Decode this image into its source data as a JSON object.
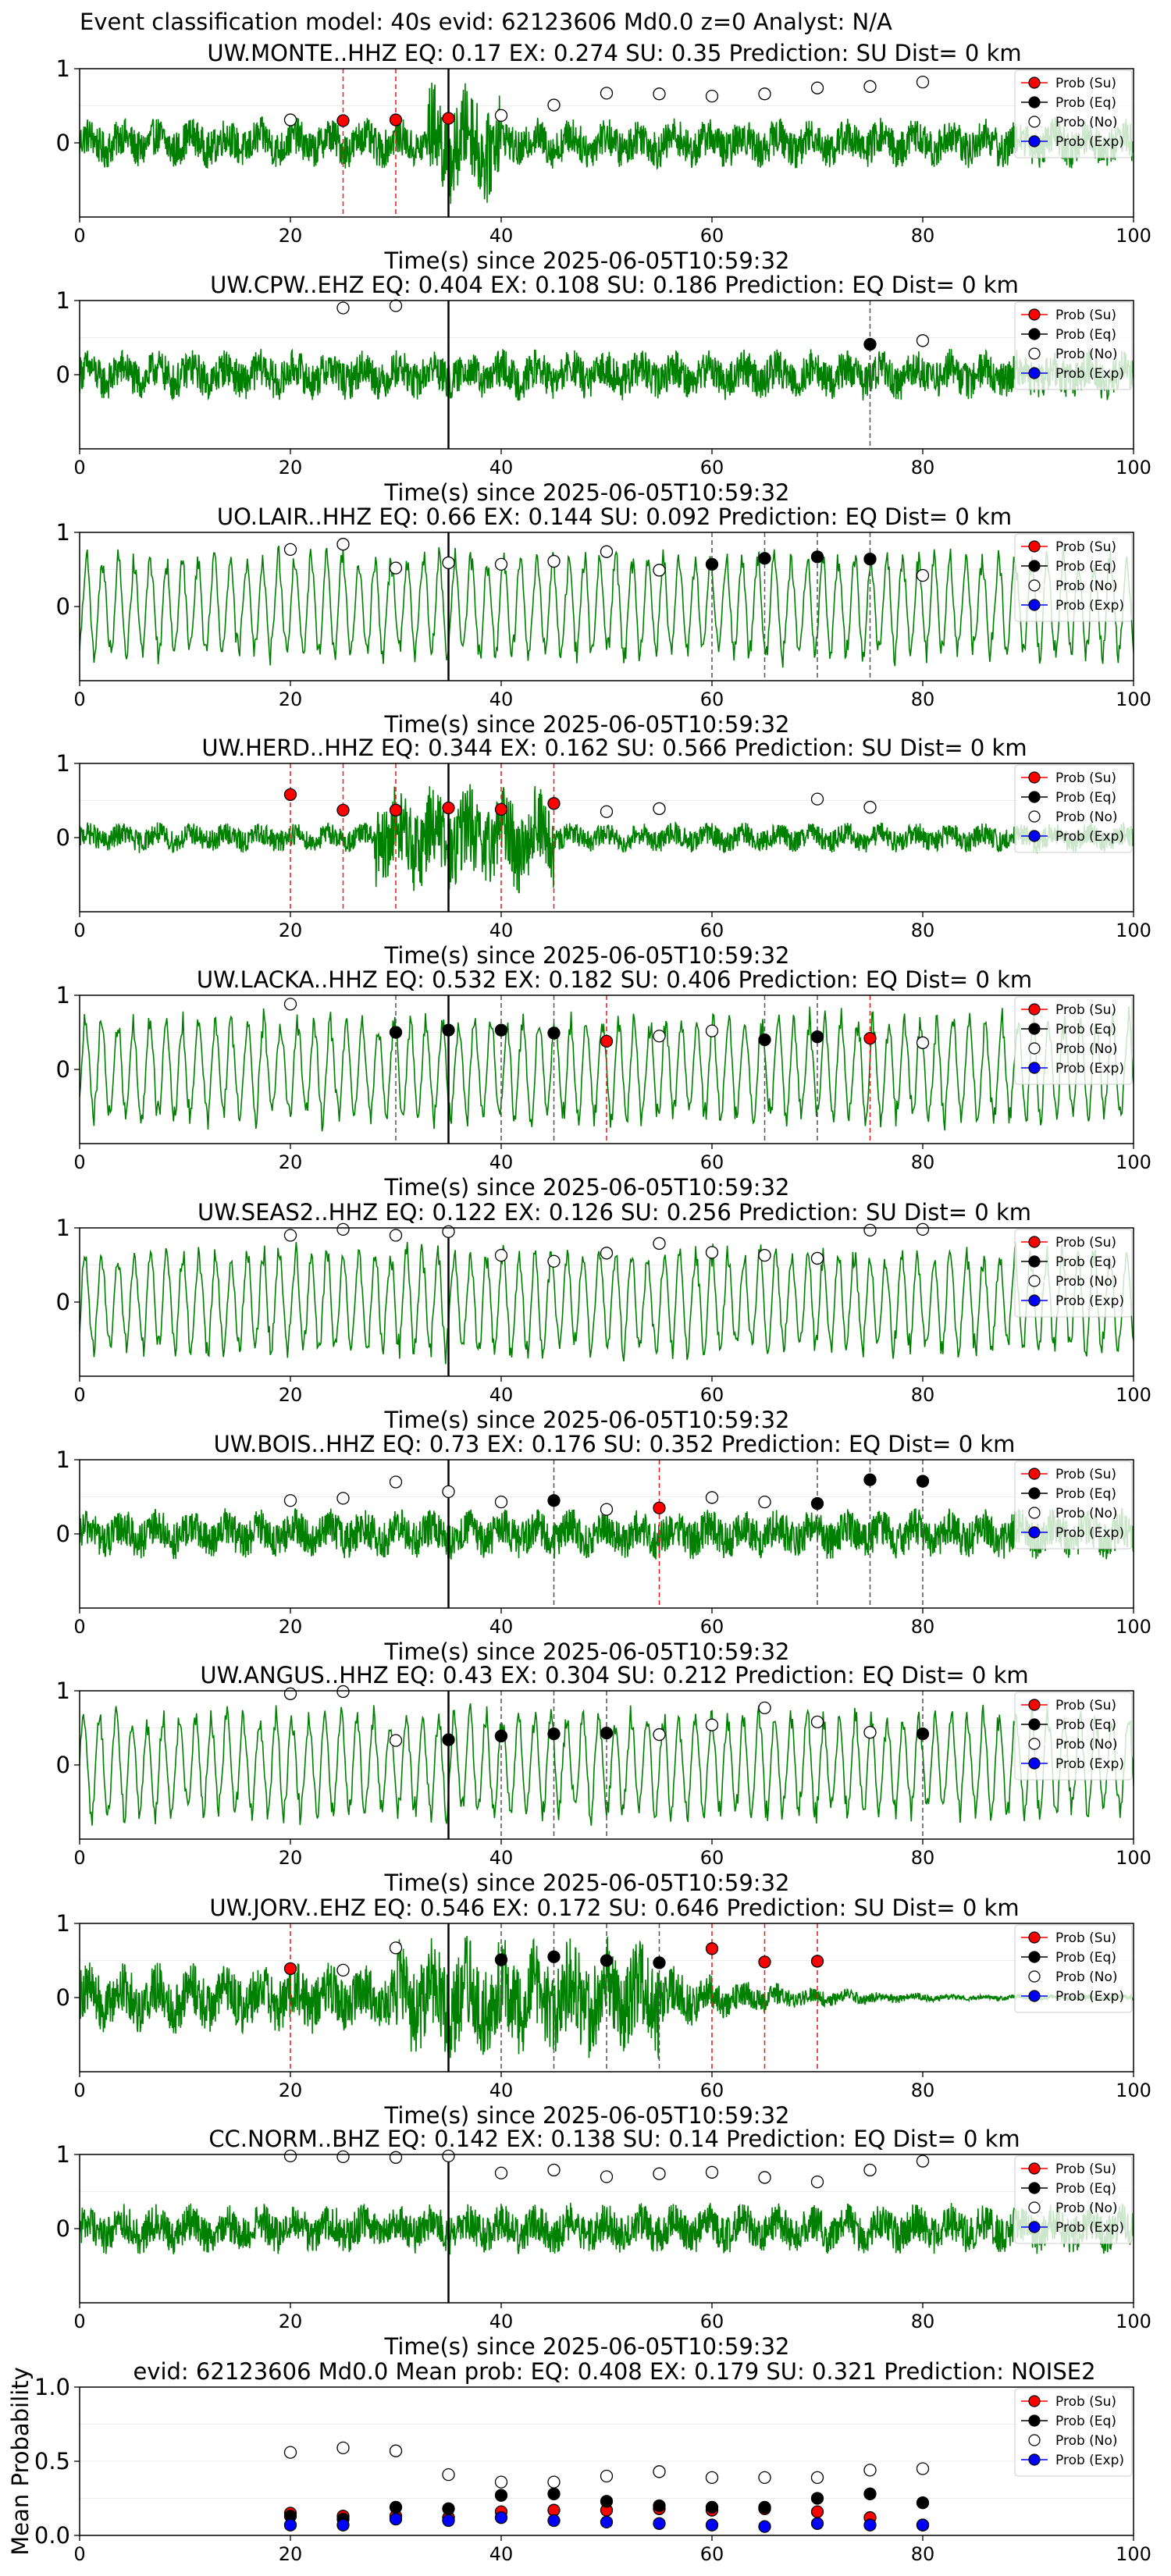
{
  "suptitle": "Event classification model: 40s evid: 62123606 Md0.0 z=0 Analyst: N/A",
  "legend": [
    "Prob (Su)",
    "Prob (Eq)",
    "Prob (No)",
    "Prob (Exp)"
  ],
  "colors": {
    "su": "#ff0000",
    "eq": "#000000",
    "no": "#ffffff",
    "exp": "#0000ff",
    "trace": "#008000",
    "su_line": "#e41a1c",
    "eq_line": "#555555"
  },
  "chart_data": [
    {
      "type": "line",
      "title": "UW.MONTE..HHZ   EQ: 0.17  EX: 0.274  SU: 0.35   Prediction: SU    Dist= 0 km",
      "xlabel": "Time(s) since 2025-06-05T10:59:32",
      "xlim": [
        0,
        100
      ],
      "ylim": [
        -1,
        1
      ],
      "xticks": [
        "0",
        "20",
        "40",
        "60",
        "80",
        "100"
      ],
      "yticks": [
        "1",
        "0"
      ],
      "trace_style": "dense",
      "onset": 35,
      "su": {
        "x": [
          25,
          30,
          35
        ],
        "y": [
          0.3,
          0.31,
          0.33
        ]
      },
      "eq": {
        "x": [],
        "y": []
      },
      "no": {
        "x": [
          20,
          40,
          45,
          50,
          55,
          60,
          65,
          70,
          75,
          80
        ],
        "y": [
          0.31,
          0.37,
          0.51,
          0.67,
          0.66,
          0.63,
          0.66,
          0.74,
          0.76,
          0.82
        ]
      },
      "su_lines": [
        25,
        30
      ],
      "eq_lines": []
    },
    {
      "type": "line",
      "title": "UW.CPW..EHZ   EQ: 0.404  EX: 0.108  SU: 0.186   Prediction: EQ    Dist= 0 km",
      "xlabel": "Time(s) since 2025-06-05T10:59:32",
      "xlim": [
        0,
        100
      ],
      "ylim": [
        -1,
        1
      ],
      "xticks": [
        "0",
        "20",
        "40",
        "60",
        "80",
        "100"
      ],
      "yticks": [
        "1",
        "0"
      ],
      "trace_style": "dense",
      "onset": 35,
      "su": {
        "x": [],
        "y": []
      },
      "eq": {
        "x": [
          75
        ],
        "y": [
          0.41
        ]
      },
      "no": {
        "x": [
          25,
          30,
          80
        ],
        "y": [
          0.9,
          0.93,
          0.46
        ]
      },
      "su_lines": [],
      "eq_lines": [
        75
      ]
    },
    {
      "type": "line",
      "title": "UO.LAIR..HHZ   EQ: 0.66  EX: 0.144  SU: 0.092   Prediction: EQ    Dist= 0 km",
      "xlabel": "Time(s) since 2025-06-05T10:59:32",
      "xlim": [
        0,
        100
      ],
      "ylim": [
        -1,
        1
      ],
      "xticks": [
        "0",
        "20",
        "40",
        "60",
        "80",
        "100"
      ],
      "yticks": [
        "1",
        "0"
      ],
      "trace_style": "smooth",
      "onset": 35,
      "su": {
        "x": [],
        "y": []
      },
      "eq": {
        "x": [
          60,
          65,
          70,
          75
        ],
        "y": [
          0.57,
          0.65,
          0.67,
          0.64
        ]
      },
      "no": {
        "x": [
          20,
          25,
          30,
          35,
          40,
          45,
          50,
          55,
          80
        ],
        "y": [
          0.77,
          0.84,
          0.52,
          0.59,
          0.57,
          0.61,
          0.74,
          0.49,
          0.42
        ]
      },
      "su_lines": [],
      "eq_lines": [
        60,
        65,
        70,
        75
      ]
    },
    {
      "type": "line",
      "title": "UW.HERD..HHZ   EQ: 0.344  EX: 0.162  SU: 0.566   Prediction: SU    Dist= 0 km",
      "xlabel": "Time(s) since 2025-06-05T10:59:32",
      "xlim": [
        0,
        100
      ],
      "ylim": [
        -1,
        1
      ],
      "xticks": [
        "0",
        "20",
        "40",
        "60",
        "80",
        "100"
      ],
      "yticks": [
        "1",
        "0"
      ],
      "trace_style": "dense",
      "onset": 35,
      "su": {
        "x": [
          20,
          25,
          30,
          35,
          40,
          45
        ],
        "y": [
          0.58,
          0.37,
          0.37,
          0.4,
          0.38,
          0.46
        ]
      },
      "eq": {
        "x": [],
        "y": []
      },
      "no": {
        "x": [
          50,
          55,
          70,
          75
        ],
        "y": [
          0.35,
          0.39,
          0.52,
          0.41
        ]
      },
      "su_lines": [
        20,
        25,
        30,
        40,
        45
      ],
      "eq_lines": []
    },
    {
      "type": "line",
      "title": "UW.LACKA..HHZ   EQ: 0.532  EX: 0.182  SU: 0.406   Prediction: EQ    Dist= 0 km",
      "xlabel": "Time(s) since 2025-06-05T10:59:32",
      "xlim": [
        0,
        100
      ],
      "ylim": [
        -1,
        1
      ],
      "xticks": [
        "0",
        "20",
        "40",
        "60",
        "80",
        "100"
      ],
      "yticks": [
        "1",
        "0"
      ],
      "trace_style": "smooth",
      "onset": 35,
      "su": {
        "x": [
          50,
          75
        ],
        "y": [
          0.38,
          0.42
        ]
      },
      "eq": {
        "x": [
          30,
          35,
          40,
          45,
          65,
          70
        ],
        "y": [
          0.5,
          0.53,
          0.53,
          0.49,
          0.4,
          0.44
        ]
      },
      "no": {
        "x": [
          20,
          55,
          60,
          80
        ],
        "y": [
          0.88,
          0.45,
          0.52,
          0.36
        ]
      },
      "su_lines": [
        50,
        75
      ],
      "eq_lines": [
        30,
        40,
        45,
        65,
        70
      ]
    },
    {
      "type": "line",
      "title": "UW.SEAS2..HHZ   EQ: 0.122  EX: 0.126  SU: 0.256   Prediction: SU    Dist= 0 km",
      "xlabel": "Time(s) since 2025-06-05T10:59:32",
      "xlim": [
        0,
        100
      ],
      "ylim": [
        -1,
        1
      ],
      "xticks": [
        "0",
        "20",
        "40",
        "60",
        "80",
        "100"
      ],
      "yticks": [
        "1",
        "0"
      ],
      "trace_style": "smooth",
      "onset": 35,
      "su": {
        "x": [],
        "y": []
      },
      "eq": {
        "x": [],
        "y": []
      },
      "no": {
        "x": [
          20,
          25,
          30,
          35,
          40,
          45,
          50,
          55,
          60,
          65,
          70,
          75,
          80
        ],
        "y": [
          0.9,
          0.98,
          0.9,
          0.95,
          0.63,
          0.55,
          0.66,
          0.79,
          0.67,
          0.63,
          0.59,
          0.97,
          0.98
        ]
      },
      "su_lines": [],
      "eq_lines": []
    },
    {
      "type": "line",
      "title": "UW.BOIS..HHZ   EQ: 0.73  EX: 0.176  SU: 0.352   Prediction: EQ    Dist= 0 km",
      "xlabel": "Time(s) since 2025-06-05T10:59:32",
      "xlim": [
        0,
        100
      ],
      "ylim": [
        -1,
        1
      ],
      "xticks": [
        "0",
        "20",
        "40",
        "60",
        "80",
        "100"
      ],
      "yticks": [
        "1",
        "0"
      ],
      "trace_style": "dense",
      "onset": 35,
      "su": {
        "x": [
          55
        ],
        "y": [
          0.35
        ]
      },
      "eq": {
        "x": [
          45,
          70,
          75,
          80
        ],
        "y": [
          0.45,
          0.41,
          0.73,
          0.71
        ]
      },
      "no": {
        "x": [
          20,
          25,
          30,
          35,
          40,
          50,
          60,
          65
        ],
        "y": [
          0.45,
          0.48,
          0.7,
          0.57,
          0.43,
          0.33,
          0.49,
          0.43
        ]
      },
      "su_lines": [
        55
      ],
      "eq_lines": [
        45,
        70,
        75,
        80
      ]
    },
    {
      "type": "line",
      "title": "UW.ANGUS..HHZ   EQ: 0.43  EX: 0.304  SU: 0.212   Prediction: EQ    Dist= 0 km",
      "xlabel": "Time(s) since 2025-06-05T10:59:32",
      "xlim": [
        0,
        100
      ],
      "ylim": [
        -1,
        1
      ],
      "xticks": [
        "0",
        "20",
        "40",
        "60",
        "80",
        "100"
      ],
      "yticks": [
        "1",
        "0"
      ],
      "trace_style": "smooth",
      "onset": 35,
      "su": {
        "x": [],
        "y": []
      },
      "eq": {
        "x": [
          35,
          40,
          45,
          50,
          80
        ],
        "y": [
          0.34,
          0.39,
          0.42,
          0.43,
          0.42
        ]
      },
      "no": {
        "x": [
          20,
          25,
          30,
          55,
          60,
          65,
          70,
          75
        ],
        "y": [
          0.96,
          0.99,
          0.33,
          0.41,
          0.54,
          0.77,
          0.58,
          0.44
        ]
      },
      "su_lines": [],
      "eq_lines": [
        40,
        45,
        50,
        80
      ]
    },
    {
      "type": "line",
      "title": "UW.JORV..EHZ   EQ: 0.546  EX: 0.172  SU: 0.646   Prediction: SU    Dist= 0 km",
      "xlabel": "Time(s) since 2025-06-05T10:59:32",
      "xlim": [
        0,
        100
      ],
      "ylim": [
        -1,
        1
      ],
      "xticks": [
        "0",
        "20",
        "40",
        "60",
        "80",
        "100"
      ],
      "yticks": [
        "1",
        "0"
      ],
      "trace_style": "decay",
      "onset": 35,
      "su": {
        "x": [
          20,
          60,
          65,
          70
        ],
        "y": [
          0.39,
          0.66,
          0.48,
          0.49
        ]
      },
      "eq": {
        "x": [
          40,
          45,
          50,
          55
        ],
        "y": [
          0.51,
          0.55,
          0.5,
          0.47
        ]
      },
      "no": {
        "x": [
          25,
          30
        ],
        "y": [
          0.37,
          0.67
        ]
      },
      "su_lines": [
        20,
        60,
        65,
        70
      ],
      "eq_lines": [
        40,
        45,
        50,
        55
      ]
    },
    {
      "type": "line",
      "title": "CC.NORM..BHZ   EQ: 0.142  EX: 0.138  SU: 0.14   Prediction: EQ    Dist= 0 km",
      "xlabel": "Time(s) since 2025-06-05T10:59:32",
      "xlim": [
        0,
        100
      ],
      "ylim": [
        -1,
        1
      ],
      "xticks": [
        "0",
        "20",
        "40",
        "60",
        "80",
        "100"
      ],
      "yticks": [
        "1",
        "0"
      ],
      "trace_style": "dense",
      "onset": 35,
      "su": {
        "x": [],
        "y": []
      },
      "eq": {
        "x": [],
        "y": []
      },
      "no": {
        "x": [
          20,
          25,
          30,
          35,
          40,
          45,
          50,
          55,
          60,
          65,
          70,
          75,
          80
        ],
        "y": [
          0.98,
          0.97,
          0.96,
          0.98,
          0.75,
          0.79,
          0.7,
          0.74,
          0.76,
          0.69,
          0.63,
          0.79,
          0.91
        ]
      },
      "su_lines": [],
      "eq_lines": []
    },
    {
      "type": "scatter",
      "title": "evid: 62123606  Md0.0   Mean prob:   EQ: 0.408  EX: 0.179  SU: 0.321   Prediction: NOISE2",
      "ylabel": "Mean Probability",
      "xlim": [
        0,
        100
      ],
      "ylim": [
        0,
        1
      ],
      "xticks": [
        "0",
        "20",
        "40",
        "60",
        "80",
        "100"
      ],
      "yticks": [
        "0.0",
        "0.5",
        "1.0"
      ],
      "su": {
        "x": [
          20,
          25,
          30,
          35,
          40,
          45,
          50,
          55,
          60,
          65,
          70,
          75,
          80
        ],
        "y": [
          0.15,
          0.13,
          0.13,
          0.12,
          0.16,
          0.17,
          0.17,
          0.18,
          0.17,
          0.18,
          0.16,
          0.12,
          0.07
        ]
      },
      "eq": {
        "x": [
          20,
          25,
          30,
          35,
          40,
          45,
          50,
          55,
          60,
          65,
          70,
          75,
          80
        ],
        "y": [
          0.13,
          0.11,
          0.19,
          0.18,
          0.27,
          0.28,
          0.23,
          0.2,
          0.19,
          0.19,
          0.25,
          0.28,
          0.22
        ]
      },
      "no": {
        "x": [
          20,
          25,
          30,
          35,
          40,
          45,
          50,
          55,
          60,
          65,
          70,
          75,
          80
        ],
        "y": [
          0.56,
          0.59,
          0.57,
          0.41,
          0.36,
          0.36,
          0.4,
          0.43,
          0.39,
          0.39,
          0.39,
          0.44,
          0.45
        ]
      },
      "exp": {
        "x": [
          20,
          25,
          30,
          35,
          40,
          45,
          50,
          55,
          60,
          65,
          70,
          75,
          80
        ],
        "y": [
          0.07,
          0.07,
          0.11,
          0.1,
          0.12,
          0.1,
          0.09,
          0.08,
          0.07,
          0.06,
          0.08,
          0.07,
          0.07
        ]
      }
    }
  ]
}
